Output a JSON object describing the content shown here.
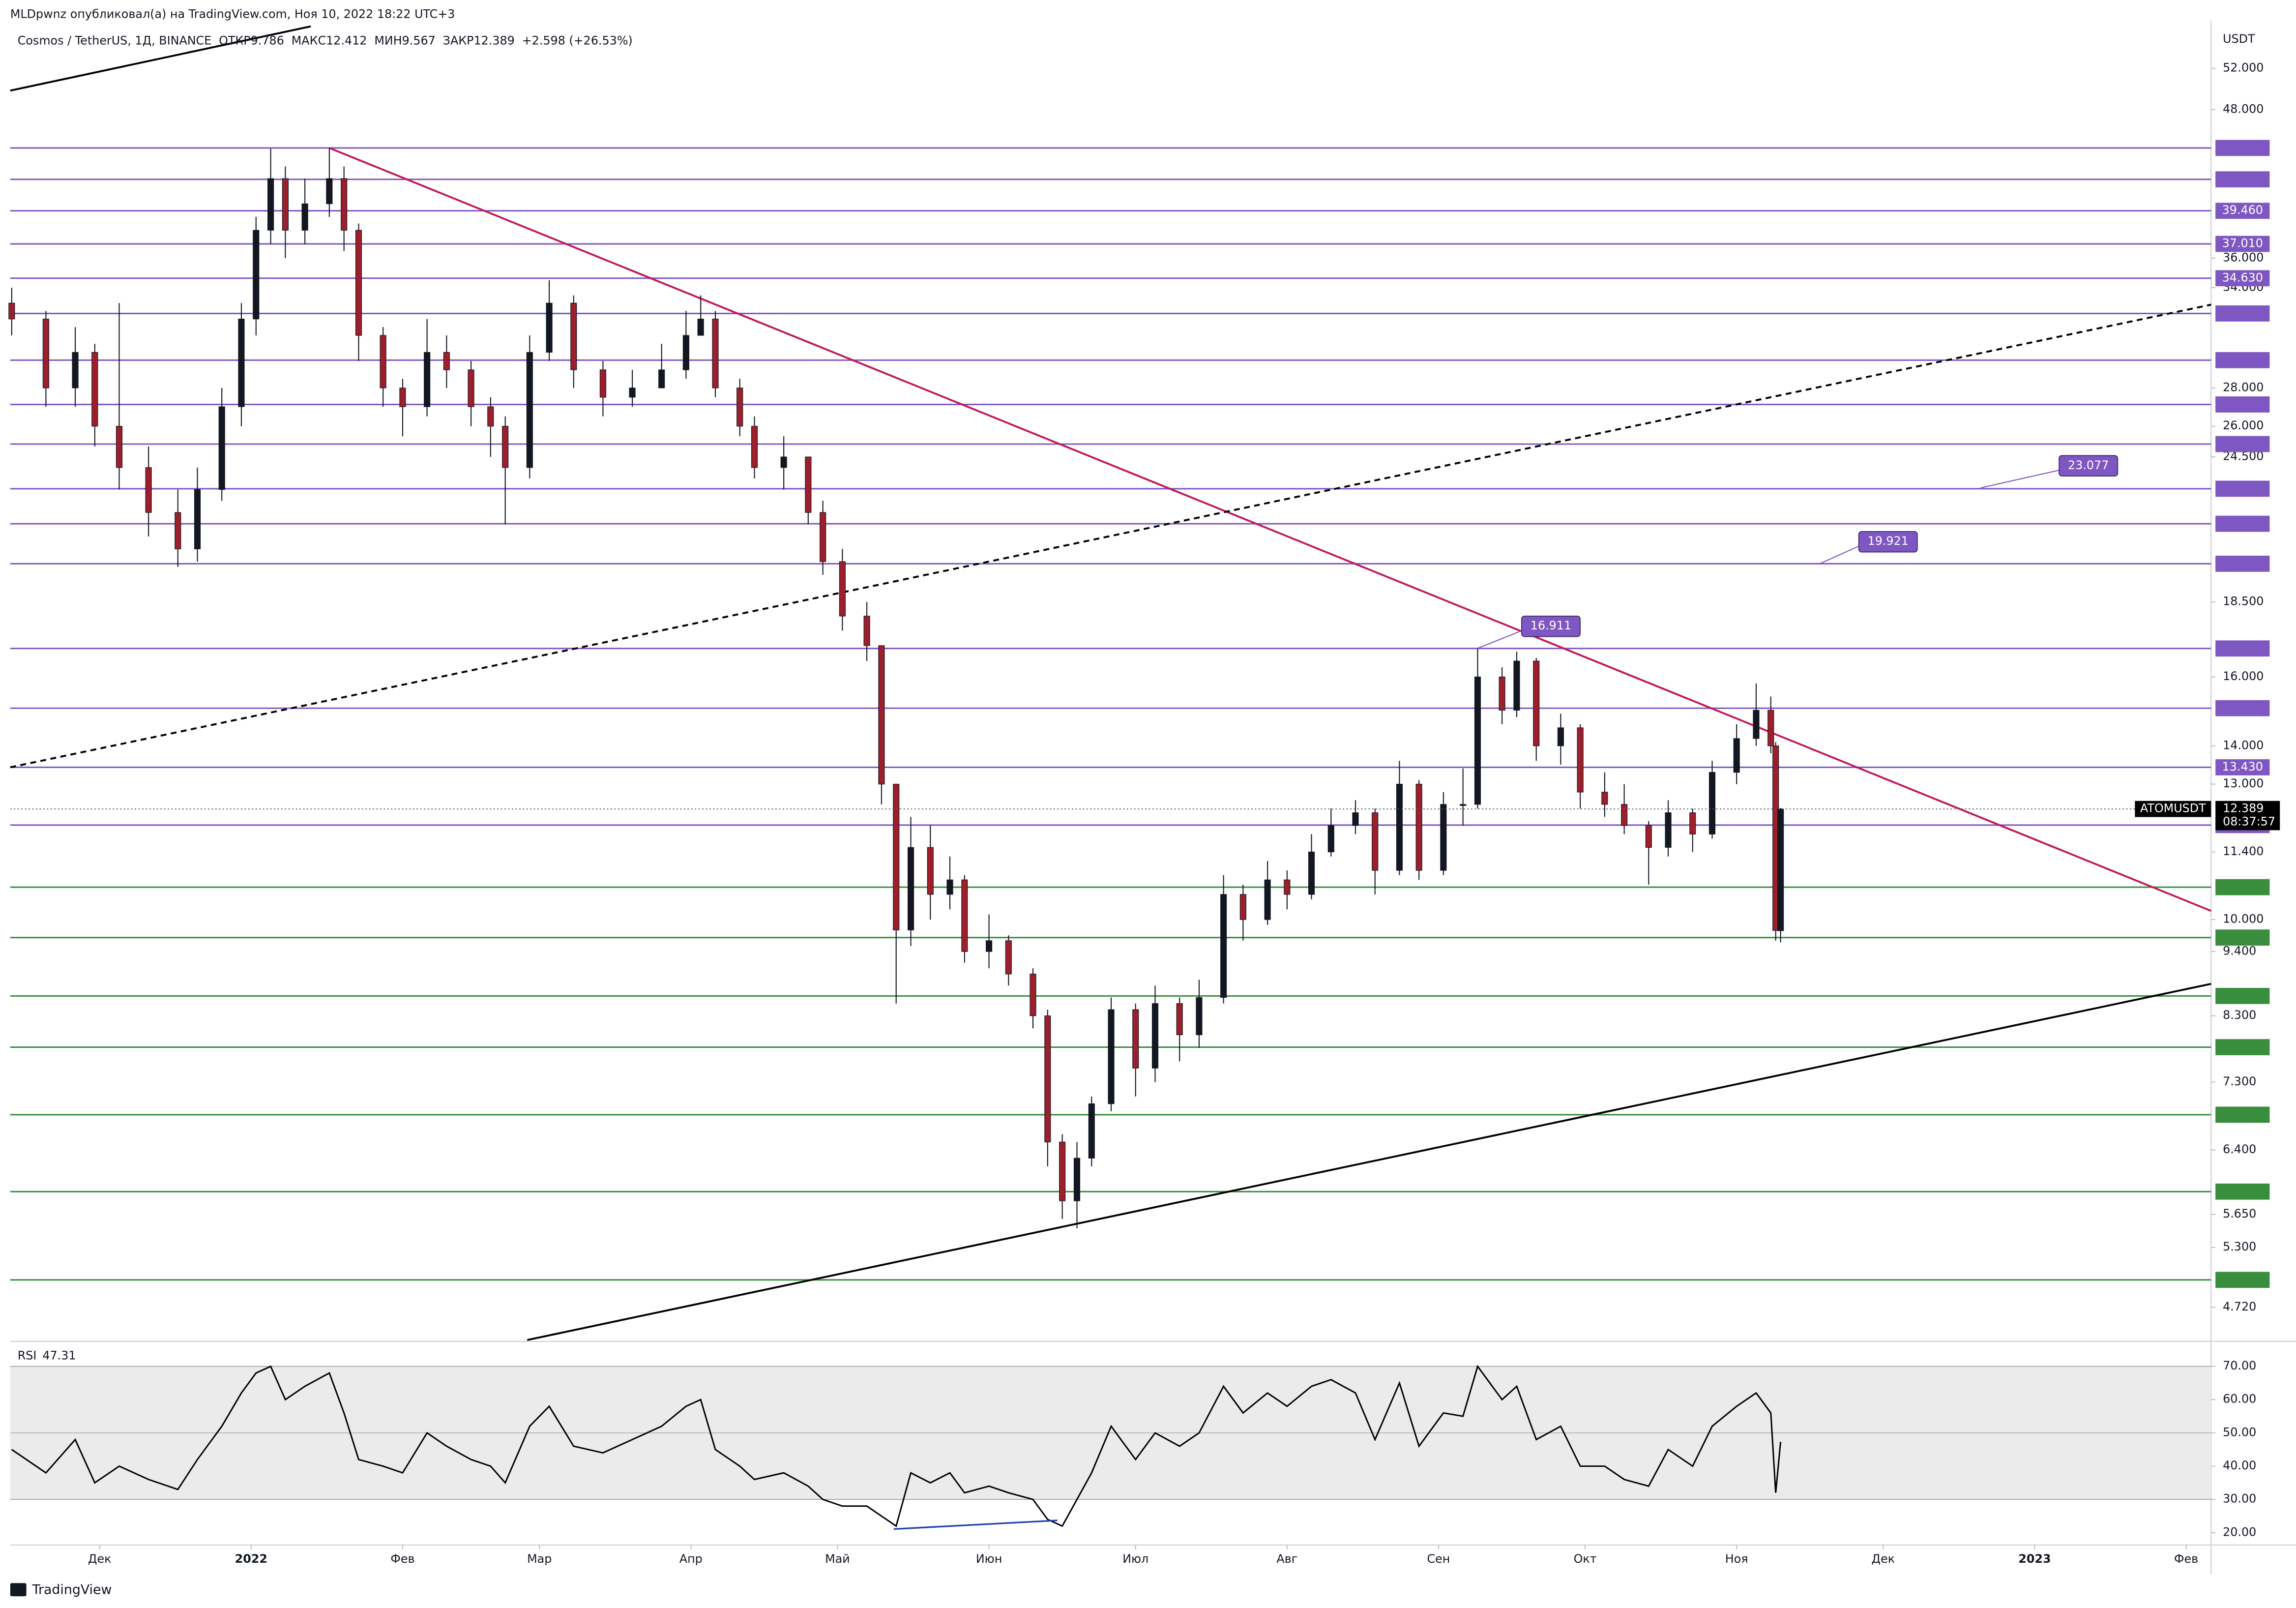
{
  "header": "MLDpwnz опубликовал(а) на TradingView.com, Ноя 10, 2022 18:22 UTC+3",
  "footer": "TradingView",
  "chart_data": {
    "type": "candlestick",
    "symbol_title": "Cosmos / TetherUS, 1Д, BINANCE",
    "legend_labels": {
      "open": "ОТКР",
      "high": "МАКС",
      "low": "МИН",
      "close": "ЗАКР"
    },
    "change": "+2.598 (+26.53%)",
    "currency": "USDT",
    "symbol": "ATOMUSDT",
    "countdown": "08:37:57",
    "log_scale": true,
    "up_color": "#131722",
    "down_color": "#9c1f2b",
    "xlim": [
      11.7,
      462.1
    ],
    "xticks": [
      {
        "value": 30,
        "label": "Дек"
      },
      {
        "value": 61,
        "label": "2022"
      },
      {
        "value": 92,
        "label": "Фев"
      },
      {
        "value": 120,
        "label": "Мар"
      },
      {
        "value": 151,
        "label": "Апр"
      },
      {
        "value": 181,
        "label": "Май"
      },
      {
        "value": 212,
        "label": "Июн"
      },
      {
        "value": 242,
        "label": "Июл"
      },
      {
        "value": 273,
        "label": "Авг"
      },
      {
        "value": 304,
        "label": "Сен"
      },
      {
        "value": 334,
        "label": "Окт"
      },
      {
        "value": 365,
        "label": "Ноя"
      },
      {
        "value": 395,
        "label": "Дек"
      },
      {
        "value": 426,
        "label": "2023"
      },
      {
        "value": 457,
        "label": "Фев"
      }
    ],
    "ylim": [
      4.43,
      56.4
    ],
    "yticks": [
      {
        "value": 52,
        "label": "52.000"
      },
      {
        "value": 48,
        "label": "48.000"
      },
      {
        "value": 36,
        "label": "36.000"
      },
      {
        "value": 34,
        "label": "34.000"
      },
      {
        "value": 28,
        "label": "28.000"
      },
      {
        "value": 26,
        "label": "26.000"
      },
      {
        "value": 24.5,
        "label": "24.500"
      },
      {
        "value": 18.5,
        "label": "18.500"
      },
      {
        "value": 16,
        "label": "16.000"
      },
      {
        "value": 14,
        "label": "14.000"
      },
      {
        "value": 13,
        "label": "13.000"
      },
      {
        "value": 11.4,
        "label": "11.400"
      },
      {
        "value": 10,
        "label": "10.000"
      },
      {
        "value": 9.4,
        "label": "9.400"
      },
      {
        "value": 8.3,
        "label": "8.300"
      },
      {
        "value": 7.3,
        "label": "7.300"
      },
      {
        "value": 6.4,
        "label": "6.400"
      },
      {
        "value": 5.65,
        "label": "5.650"
      },
      {
        "value": 5.3,
        "label": "5.300"
      },
      {
        "value": 4.72,
        "label": "4.720"
      }
    ],
    "candles": {
      "x": [
        12,
        19,
        25,
        29,
        34,
        40,
        46,
        50,
        55,
        59,
        62,
        65,
        68,
        72,
        77,
        80,
        83,
        88,
        92,
        97,
        101,
        106,
        110,
        113,
        118,
        122,
        127,
        133,
        139,
        145,
        150,
        153,
        156,
        161,
        164,
        170,
        175,
        178,
        182,
        187,
        190,
        193,
        196,
        200,
        204,
        207,
        212,
        216,
        221,
        224,
        227,
        230,
        233,
        237,
        242,
        246,
        251,
        255,
        260,
        264,
        269,
        273,
        278,
        282,
        287,
        291,
        296,
        300,
        305,
        309,
        312,
        317,
        320,
        324,
        329,
        333,
        338,
        342,
        347,
        351,
        356,
        360,
        365,
        369,
        372,
        373,
        374
      ],
      "open": [
        33,
        32,
        28,
        30,
        26,
        24,
        22,
        20.5,
        23,
        27,
        32,
        38,
        42,
        38,
        40,
        42,
        38,
        31,
        28,
        27,
        30,
        29,
        27,
        26,
        24,
        30,
        33,
        29,
        27.5,
        28,
        29,
        31,
        32,
        28,
        26,
        24,
        24.5,
        22,
        20,
        18,
        17,
        13,
        9.8,
        11.5,
        10.5,
        10.8,
        9.4,
        9.6,
        9.0,
        8.3,
        6.5,
        5.8,
        6.3,
        7.0,
        8.4,
        7.5,
        8.5,
        8.0,
        8.6,
        10.5,
        10.0,
        10.8,
        10.5,
        11.4,
        12.0,
        12.3,
        11.0,
        13.0,
        11.0,
        12.5,
        12.5,
        16.0,
        15.0,
        16.5,
        14.0,
        14.5,
        12.8,
        12.5,
        12.0,
        11.5,
        12.3,
        11.8,
        13.3,
        14.2,
        15.0,
        14.0,
        9.786
      ],
      "high": [
        34,
        32.5,
        31.5,
        30.5,
        33,
        25,
        23,
        24,
        28,
        33,
        39,
        44.5,
        43,
        42,
        44.567,
        43,
        38.5,
        31.5,
        28.5,
        32,
        31,
        29.5,
        27.5,
        26.5,
        31,
        34.5,
        33.5,
        29.5,
        29,
        30.5,
        32.5,
        33.5,
        32.5,
        28.5,
        26.5,
        25.5,
        24.5,
        22.5,
        20.5,
        18.5,
        17,
        13,
        12.2,
        12,
        11.3,
        10.9,
        10.1,
        9.7,
        9.1,
        8.4,
        6.6,
        6.5,
        7.1,
        8.6,
        8.5,
        8.8,
        8.6,
        8.9,
        10.9,
        10.7,
        11.2,
        11.0,
        11.8,
        12.4,
        12.6,
        12.4,
        13.6,
        13.1,
        12.8,
        13.4,
        16.9,
        16.3,
        16.8,
        16.6,
        14.9,
        14.6,
        13.3,
        13.0,
        12.1,
        12.6,
        12.4,
        13.6,
        14.6,
        15.8,
        15.4,
        14.1,
        12.412
      ],
      "low": [
        31,
        27,
        27,
        25,
        23,
        21,
        19.8,
        20,
        22.5,
        26,
        31,
        37,
        36,
        37,
        39,
        36.5,
        29.5,
        27,
        25.5,
        26.5,
        28,
        26,
        24.5,
        21.5,
        23.5,
        29.5,
        28,
        26.5,
        27,
        28,
        28.5,
        31,
        27.5,
        25.5,
        23.5,
        23,
        21.5,
        19.5,
        17.5,
        16.5,
        12.5,
        8.5,
        9.5,
        10,
        10.2,
        9.2,
        9.1,
        8.8,
        8.1,
        6.2,
        5.6,
        5.5,
        6.2,
        6.9,
        7.1,
        7.3,
        7.6,
        7.8,
        8.5,
        9.6,
        9.9,
        10.2,
        10.4,
        11.3,
        11.8,
        10.5,
        10.9,
        10.8,
        10.9,
        12.0,
        12.4,
        14.6,
        14.8,
        13.6,
        13.5,
        12.4,
        12.2,
        11.8,
        10.7,
        11.3,
        11.4,
        11.7,
        13.0,
        14.0,
        13.8,
        9.6,
        9.567
      ],
      "close": [
        32,
        28,
        30,
        26,
        24,
        22,
        20.5,
        23,
        27,
        32,
        38,
        42,
        38,
        40,
        42,
        38,
        31,
        28,
        27,
        30,
        29,
        27,
        26,
        24,
        30,
        33,
        29,
        27.5,
        28,
        29,
        31,
        32,
        28,
        26,
        24,
        24.5,
        22,
        20,
        18,
        17,
        13,
        9.8,
        11.5,
        10.5,
        10.8,
        9.4,
        9.6,
        9.0,
        8.3,
        6.5,
        5.8,
        6.3,
        7.0,
        8.4,
        7.5,
        8.5,
        8.0,
        8.6,
        10.5,
        10.0,
        10.8,
        10.5,
        11.4,
        12.0,
        12.3,
        11.0,
        13.0,
        11.0,
        12.5,
        12.5,
        16.0,
        15.0,
        16.5,
        14.0,
        14.5,
        12.8,
        12.5,
        12.0,
        11.5,
        12.3,
        11.8,
        13.3,
        14.2,
        15.0,
        14.0,
        9.791,
        12.389
      ]
    },
    "levels": [
      {
        "value": 44.567,
        "color": "#7e57c2"
      },
      {
        "value": 41.937,
        "color": "#7e57c2"
      },
      {
        "value": 39.46,
        "label": "39.460",
        "color": "#7e57c2"
      },
      {
        "value": 37.01,
        "label": "37.010",
        "color": "#7e57c2"
      },
      {
        "value": 34.63,
        "label": "34.630",
        "color": "#7e57c2"
      },
      {
        "value": 32.344,
        "color": "#7e57c2"
      },
      {
        "value": 29.549,
        "color": "#7e57c2"
      },
      {
        "value": 27.119,
        "color": "#7e57c2"
      },
      {
        "value": 25.116,
        "color": "#7e57c2"
      },
      {
        "value": 23.034,
        "color": "#7e57c2"
      },
      {
        "value": 21.524,
        "color": "#7e57c2"
      },
      {
        "value": 19.921,
        "color": "#7e57c2"
      },
      {
        "value": 16.906,
        "color": "#7e57c2"
      },
      {
        "value": 15.059,
        "color": "#7e57c2"
      },
      {
        "value": 13.43,
        "label": "13.430",
        "color": "#7e57c2"
      },
      {
        "value": 12.009,
        "color": "#7e57c2"
      },
      {
        "value": 10.648,
        "color": "#388e3c"
      },
      {
        "value": 9.658,
        "color": "#388e3c"
      },
      {
        "value": 8.625,
        "color": "#388e3c"
      },
      {
        "value": 7.811,
        "color": "#388e3c"
      },
      {
        "value": 6.853,
        "color": "#388e3c"
      },
      {
        "value": 5.905,
        "color": "#388e3c"
      },
      {
        "value": 4.977,
        "color": "#388e3c"
      }
    ],
    "trend_lines": [
      {
        "color": "#c2185b",
        "dash": false,
        "x": [
          77,
          462.1
        ],
        "values": [
          44.567,
          10.17
        ]
      },
      {
        "color": "#000000",
        "dash": true,
        "x": [
          11.7,
          462.1
        ],
        "values": [
          13.43,
          32.9
        ]
      },
      {
        "color": "#000000",
        "dash": false,
        "x": [
          117.5,
          462.1
        ],
        "values": [
          4.43,
          8.83
        ]
      },
      {
        "color": "#000000",
        "dash": false,
        "x": [
          11.7,
          73.2
        ],
        "values": [
          49.8,
          56.4
        ]
      }
    ],
    "callouts": [
      {
        "value": 23.077,
        "x": [
          415,
          431
        ]
      },
      {
        "value": 19.921,
        "x": [
          382,
          390
        ]
      },
      {
        "value": 16.911,
        "x": [
          312,
          321
        ]
      }
    ],
    "rsi": {
      "title": "RSI",
      "color": "#000000",
      "band": [
        30,
        70
      ],
      "mid": 50,
      "band_color": "#ebebeb",
      "ylim": [
        16.3,
        76.6
      ],
      "yticks": [
        {
          "value": 70,
          "label": "70.00"
        },
        {
          "value": 60,
          "label": "60.00"
        },
        {
          "value": 50,
          "label": "50.00"
        },
        {
          "value": 40,
          "label": "40.00"
        },
        {
          "value": 30,
          "label": "30.00"
        },
        {
          "value": 20,
          "label": "20.00"
        }
      ],
      "values": [
        45,
        38,
        48,
        35,
        40,
        36,
        33,
        42,
        52,
        62,
        68,
        70,
        60,
        64,
        68,
        56,
        42,
        40,
        38,
        50,
        46,
        42,
        40,
        35,
        52,
        58,
        46,
        44,
        48,
        52,
        58,
        60,
        45,
        40,
        36,
        38,
        34,
        30,
        28,
        28,
        25,
        22,
        38,
        35,
        38,
        32,
        34,
        32,
        30,
        24,
        22,
        30,
        38,
        52,
        42,
        50,
        46,
        50,
        64,
        56,
        62,
        58,
        64,
        66,
        62,
        48,
        65,
        46,
        56,
        55,
        70,
        60,
        64,
        48,
        52,
        40,
        40,
        36,
        34,
        45,
        40,
        52,
        58,
        62,
        56,
        32,
        47.31
      ],
      "divergence": {
        "color": "#1e40af",
        "x": [
          192.5,
          226
        ],
        "values": [
          21.1,
          23.7
        ]
      }
    }
  }
}
